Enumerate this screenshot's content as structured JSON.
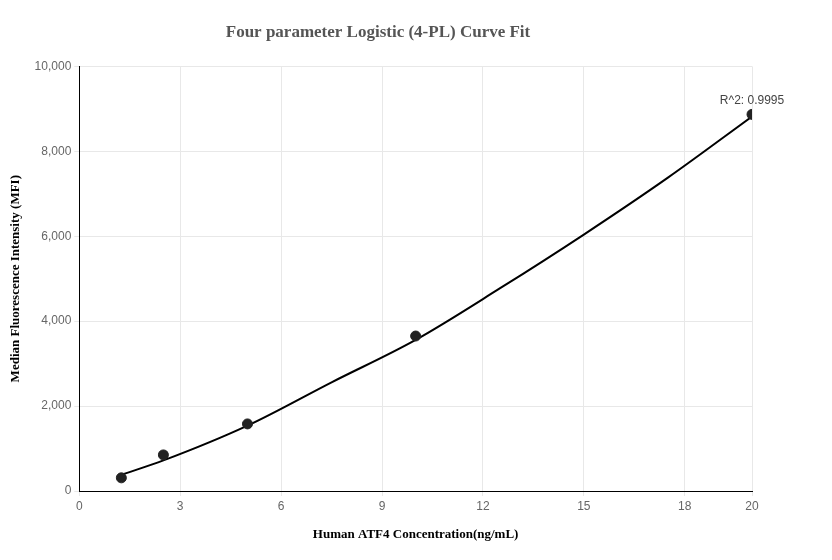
{
  "chart_data": {
    "type": "scatter",
    "title": "Four parameter Logistic (4-PL) Curve Fit",
    "x_label": "Human ATF4 Concentration(ng/mL)",
    "y_label": "Median Fluorescence Intensity (MFI)",
    "annotation": "R^2: 0.9995",
    "xlim": [
      0,
      20
    ],
    "xticks": [
      0,
      3,
      6,
      9,
      12,
      15,
      18,
      20
    ],
    "ylim": [
      0,
      10000
    ],
    "yticks": [
      0,
      {
        "value": 2000,
        "label": "2,000"
      },
      {
        "value": 4000,
        "label": "4,000"
      },
      {
        "value": 6000,
        "label": "6,000"
      },
      {
        "value": 8000,
        "label": "8,000"
      },
      {
        "value": 10000,
        "label": "10,000"
      }
    ],
    "grid": true,
    "series": [
      {
        "type": "scatter",
        "color": "#222222",
        "marker": "circle",
        "x": [
          1.25,
          2.5,
          5,
          10,
          20
        ],
        "values": [
          310,
          850,
          1580,
          3650,
          8870
        ]
      },
      {
        "type": "line",
        "color": "#000000",
        "line_style": "solid",
        "x": [
          1.25,
          2.5,
          5,
          7.5,
          10,
          12.5,
          15,
          17.5,
          20
        ],
        "values": [
          380,
          720,
          1540,
          2560,
          3560,
          4770,
          6040,
          7380,
          8820
        ]
      }
    ]
  }
}
